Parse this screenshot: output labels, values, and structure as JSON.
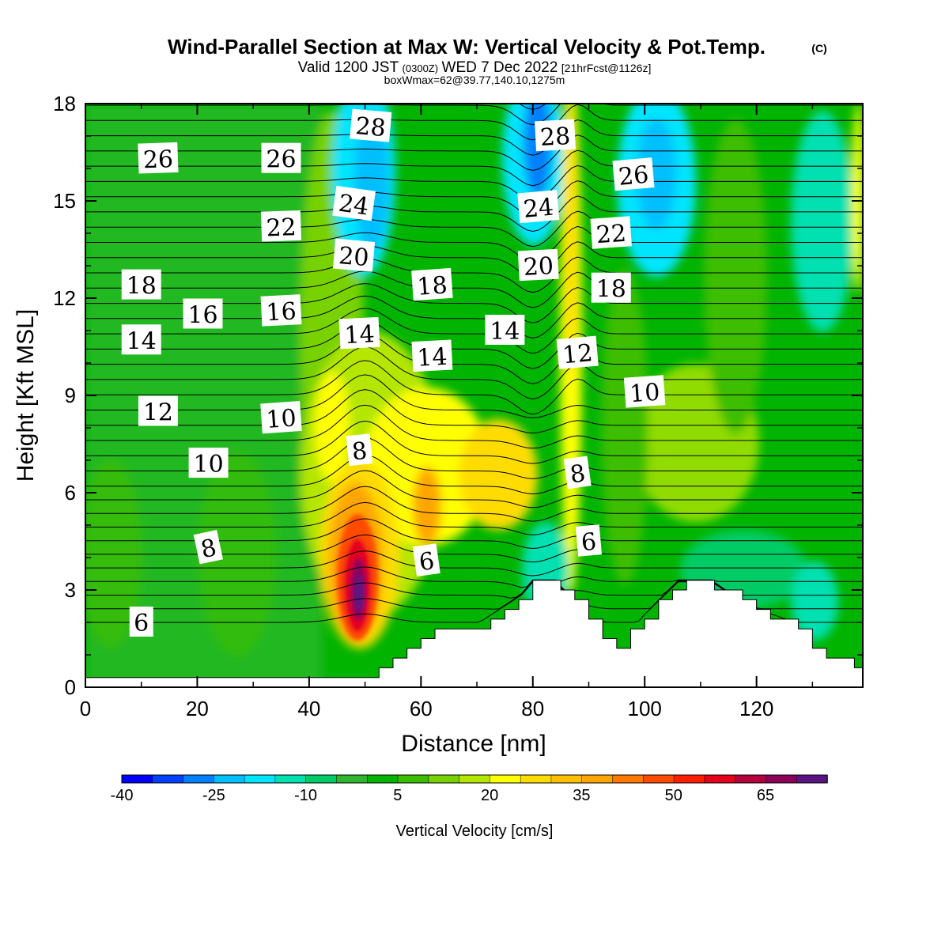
{
  "chart_data": {
    "type": "heatmap",
    "title": "Wind-Parallel Section at Max W: Vertical Velocity & Pot.Temp.",
    "title_mark": "(C)",
    "subtitle_main": "Valid 1200 JST",
    "subtitle_utc": "(0300Z)",
    "subtitle_date": "WED 7 Dec 2022",
    "subtitle_fcst": "[21hrFcst@1126z]",
    "subtitle2": "boxWmax=62@39.77,140.10,1275m",
    "xlabel": "Distance [nm]",
    "ylabel": "Height [Kft MSL]",
    "xlim": [
      0,
      139
    ],
    "ylim": [
      0,
      18
    ],
    "xticks": [
      "0",
      "20",
      "40",
      "60",
      "80",
      "100",
      "120"
    ],
    "yticks": [
      "0",
      "3",
      "6",
      "9",
      "12",
      "15",
      "18"
    ],
    "colorbar": {
      "label": "Vertical Velocity [cm/s]",
      "tick_labels": [
        "-40",
        "-25",
        "-10",
        "5",
        "20",
        "35",
        "50",
        "65"
      ],
      "colors": [
        "#0000ff",
        "#0040ff",
        "#0080ff",
        "#00bfff",
        "#00e5ff",
        "#00e0b0",
        "#00cc66",
        "#2fb62f",
        "#00b400",
        "#3cbe00",
        "#78d200",
        "#b4e600",
        "#ffff00",
        "#ffdc00",
        "#ffc000",
        "#ffa500",
        "#ff7800",
        "#ff4b00",
        "#ff1e00",
        "#e6001e",
        "#b4003c",
        "#8c005a",
        "#5a1482"
      ]
    },
    "theta_contour_labels": [
      "26",
      "26",
      "28",
      "28",
      "26",
      "24",
      "24",
      "22",
      "22",
      "20",
      "20",
      "18",
      "18",
      "18",
      "16",
      "16",
      "14",
      "14",
      "14",
      "14",
      "12",
      "12",
      "10",
      "10",
      "10",
      "8",
      "8",
      "8",
      "6",
      "6",
      "6"
    ],
    "terrain_height_kft_profile": [
      {
        "x": 0,
        "h": 0.3
      },
      {
        "x": 42,
        "h": 0.3
      },
      {
        "x": 50,
        "h": 0.3
      },
      {
        "x": 55,
        "h": 1.0
      },
      {
        "x": 62,
        "h": 1.9
      },
      {
        "x": 70,
        "h": 1.9
      },
      {
        "x": 78,
        "h": 2.8
      },
      {
        "x": 80,
        "h": 3.2
      },
      {
        "x": 84,
        "h": 3.2
      },
      {
        "x": 88,
        "h": 2.5
      },
      {
        "x": 94,
        "h": 1.0
      },
      {
        "x": 100,
        "h": 2.2
      },
      {
        "x": 106,
        "h": 3.2
      },
      {
        "x": 112,
        "h": 3.2
      },
      {
        "x": 118,
        "h": 2.5
      },
      {
        "x": 126,
        "h": 2.0
      },
      {
        "x": 132,
        "h": 1.0
      },
      {
        "x": 139,
        "h": 0.6
      }
    ]
  }
}
